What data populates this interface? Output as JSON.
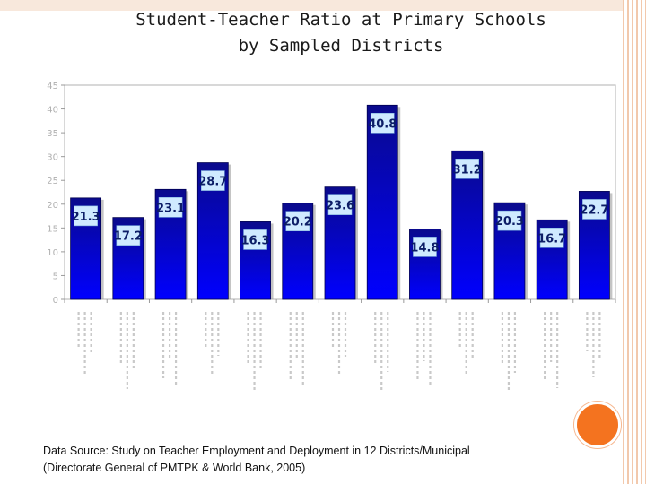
{
  "title": {
    "line1": "Student-Teacher Ratio at Primary Schools",
    "line2": "by Sampled Districts"
  },
  "source": {
    "line1": "Data Source: Study on Teacher Employment and Deployment in 12 Districts/Municipal",
    "line2": "(Directorate General of PMTPK & World Bank, 2005)"
  },
  "colors": {
    "bar_top": "#0a0a8c",
    "bar_bottom": "#0000ff",
    "label_bg": "#cfeaff",
    "accent_orange": "#f4731f",
    "deco_peach": "#f2c9ad"
  },
  "chart_data": {
    "type": "bar",
    "categories": [
      "",
      "",
      "",
      "",
      "",
      "",
      "",
      "",
      "",
      "",
      "",
      "",
      ""
    ],
    "values": [
      21.3,
      17.2,
      23.1,
      28.7,
      16.3,
      20.2,
      23.6,
      40.8,
      14.8,
      31.2,
      20.3,
      16.7,
      22.7
    ],
    "value_labels": [
      "21.3",
      "17.2",
      "23.1",
      "28.7",
      "16.3",
      "20.2",
      "23.6",
      "40.8",
      "14.8",
      "31.2",
      "20.3",
      "16.7",
      "22.7"
    ],
    "ylim": [
      0,
      45
    ],
    "yticks": [
      0,
      5,
      10,
      15,
      20,
      25,
      30,
      35,
      40,
      45
    ],
    "grid": false,
    "legend": "none",
    "title": "",
    "xlabel": "",
    "ylabel": ""
  }
}
